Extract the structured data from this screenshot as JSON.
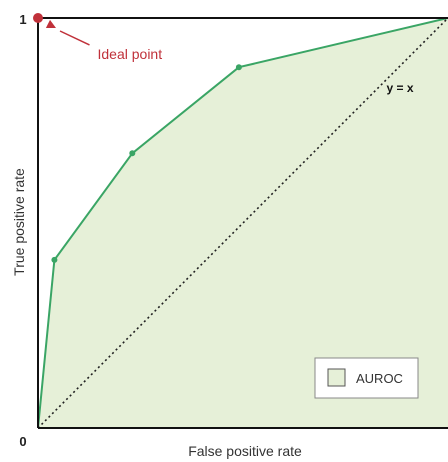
{
  "chart_data": {
    "type": "area",
    "xlabel": "False positive rate",
    "ylabel": "True positive rate",
    "xlim": [
      0,
      1
    ],
    "ylim": [
      0,
      1
    ],
    "x_tick_labels": [
      "0"
    ],
    "y_tick_labels": [
      "0",
      "1"
    ],
    "grid": false,
    "legend_position": "bottom-right",
    "series": [
      {
        "name": "AUROC",
        "x": [
          0,
          0.04,
          0.23,
          0.49,
          1
        ],
        "y": [
          0,
          0.41,
          0.67,
          0.88,
          1
        ],
        "line_color": "#3aa565",
        "fill_color": "#e6f0d8"
      }
    ],
    "diagonal": {
      "label": "y = x",
      "label_x": 0.85,
      "label_y": 0.82
    },
    "annotation": {
      "text": "Ideal point",
      "point_x": 0,
      "point_y": 1,
      "text_x": 0.15,
      "text_y": 0.91,
      "color": "#c0313a"
    }
  }
}
